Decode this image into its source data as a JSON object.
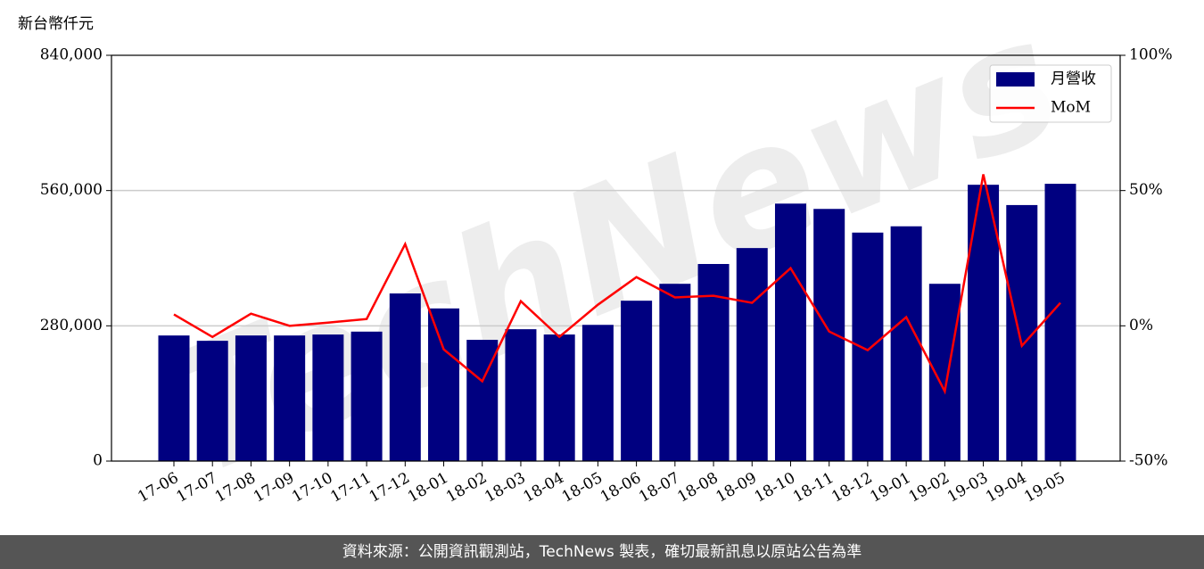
{
  "chart_data": {
    "type": "bar",
    "y_label": "新台幣仟元",
    "watermark": "TechNews",
    "categories": [
      "17-06",
      "17-07",
      "17-08",
      "17-09",
      "17-10",
      "17-11",
      "17-12",
      "18-01",
      "18-02",
      "18-03",
      "18-04",
      "18-05",
      "18-06",
      "18-07",
      "18-08",
      "18-09",
      "18-10",
      "18-11",
      "18-12",
      "19-01",
      "19-02",
      "19-03",
      "19-04",
      "19-05"
    ],
    "series": [
      {
        "name": "月營收",
        "type": "bar",
        "color": "#000080",
        "values": [
          260000,
          249000,
          260000,
          260000,
          262000,
          268000,
          347000,
          316000,
          251000,
          273000,
          262000,
          282000,
          332000,
          367000,
          408000,
          441000,
          533000,
          522000,
          473000,
          486000,
          367000,
          572000,
          530000,
          574000
        ]
      },
      {
        "name": "MoM",
        "type": "line",
        "axis": "y2",
        "color": "#ff0000",
        "values": [
          4.2,
          -4.1,
          4.5,
          0,
          1.2,
          2.5,
          30.2,
          -8.7,
          -20.5,
          9.1,
          -4.1,
          7.8,
          18.0,
          10.5,
          11.1,
          8.5,
          21.3,
          -2.1,
          -9.0,
          3.2,
          -24.2,
          56.0,
          -7.4,
          8.5
        ]
      }
    ],
    "ylim": [
      0,
      840000
    ],
    "yticks": [
      0,
      {
        "value": 280000,
        "label": "280,000"
      },
      {
        "value": 560000,
        "label": "560,000"
      },
      {
        "value": 840000,
        "label": "840,000"
      }
    ],
    "y2lim": [
      -50,
      100
    ],
    "y2ticks": [
      {
        "value": -50,
        "label": "-50%"
      },
      {
        "value": 0,
        "label": "0%"
      },
      {
        "value": 50,
        "label": "50%"
      },
      {
        "value": 100,
        "label": "100%"
      }
    ],
    "grid": true,
    "legend": "upper-right"
  },
  "footer": "資料來源：公開資訊觀測站，TechNews 製表，確切最新訊息以原站公告為準"
}
